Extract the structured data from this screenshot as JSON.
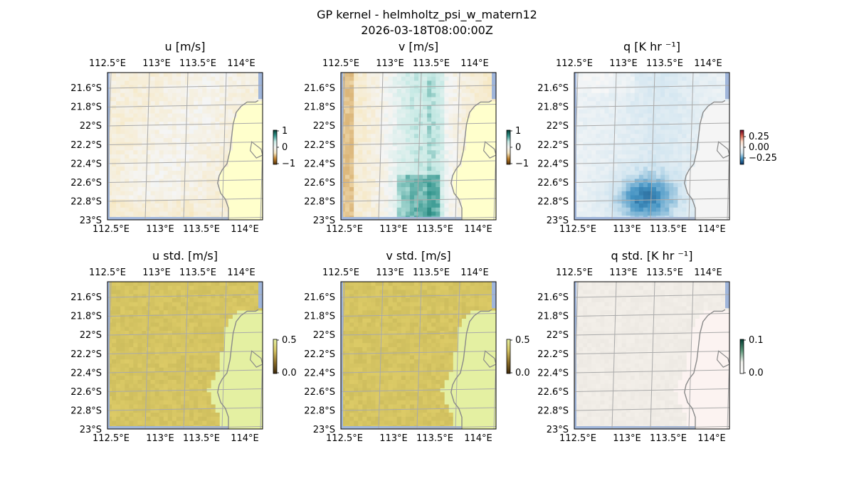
{
  "figure": {
    "title": "GP kernel - helmholtz_psi_w_matern12",
    "subtitle": "2026-03-18T08:00:00Z"
  },
  "colors": {
    "land": "#ffffcc",
    "ocean_edge": "#9fb5da",
    "coastline": "#8a8a8a",
    "grid": "#aaaaaa",
    "std_land": "#e4f0a2",
    "q_land": "#f5f5f5"
  },
  "chart_data": [
    {
      "type": "heatmap",
      "id": "u",
      "title": "u [m/s]",
      "x_ticks": [
        "112.5°E",
        "113°E",
        "113.5°E",
        "114°E"
      ],
      "y_ticks": [
        "21.6°S",
        "21.8°S",
        "22°S",
        "22.2°S",
        "22.4°S",
        "22.6°S",
        "22.8°S",
        "23°S"
      ],
      "lon_range": [
        112.4,
        114.2
      ],
      "lat_range": [
        -23.0,
        -21.48
      ],
      "colorbar": {
        "ticks": [
          "1",
          "0",
          "−1"
        ],
        "range": [
          -1,
          1
        ],
        "colormap": "BrBG-like diverging"
      },
      "field_summary": "mostly small positive values (pale yellow-tan) over ocean; land masked"
    },
    {
      "type": "heatmap",
      "id": "v",
      "title": "v [m/s]",
      "x_ticks": [
        "112.5°E",
        "113°E",
        "113.5°E",
        "114°E"
      ],
      "y_ticks": [
        "21.6°S",
        "21.8°S",
        "22°S",
        "22.2°S",
        "22.4°S",
        "22.6°S",
        "22.8°S",
        "23°S"
      ],
      "lon_range": [
        112.4,
        114.2
      ],
      "lat_range": [
        -23.0,
        -21.48
      ],
      "colorbar": {
        "ticks": [
          "1",
          "0",
          "−1"
        ],
        "range": [
          -1,
          1
        ],
        "colormap": "BrBG-like diverging"
      },
      "field_summary": "positive near western edge, negative (teal) in central band, strongest near south"
    },
    {
      "type": "heatmap",
      "id": "q",
      "title": "q [K hr ⁻¹]",
      "x_ticks": [
        "112.5°E",
        "113°E",
        "113.5°E",
        "114°E"
      ],
      "y_ticks": [
        "21.6°S",
        "21.8°S",
        "22°S",
        "22.2°S",
        "22.4°S",
        "22.6°S",
        "22.8°S",
        "23°S"
      ],
      "lon_range": [
        112.4,
        114.2
      ],
      "lat_range": [
        -23.0,
        -21.48
      ],
      "colorbar": {
        "ticks": [
          "0.25",
          "0.00",
          "−0.25"
        ],
        "range": [
          -0.35,
          0.35
        ],
        "colormap": "RdBu-like diverging"
      },
      "field_summary": "weakly negative (light blue) over most of the ocean, stronger negative in south-central region"
    },
    {
      "type": "heatmap",
      "id": "u_std",
      "title": "u std. [m/s]",
      "x_ticks": [
        "112.5°E",
        "113°E",
        "113.5°E",
        "114°E"
      ],
      "y_ticks": [
        "21.6°S",
        "21.8°S",
        "22°S",
        "22.2°S",
        "22.4°S",
        "22.6°S",
        "22.8°S",
        "23°S"
      ],
      "lon_range": [
        112.4,
        114.2
      ],
      "lat_range": [
        -23.0,
        -21.48
      ],
      "colorbar": {
        "ticks": [
          "0.5",
          "0.0"
        ],
        "range": [
          0,
          0.6
        ],
        "colormap": "sequential"
      },
      "field_summary": "near-uniform standard deviation over ocean cells"
    },
    {
      "type": "heatmap",
      "id": "v_std",
      "title": "v std. [m/s]",
      "x_ticks": [
        "112.5°E",
        "113°E",
        "113.5°E",
        "114°E"
      ],
      "y_ticks": [
        "21.6°S",
        "21.8°S",
        "22°S",
        "22.2°S",
        "22.4°S",
        "22.6°S",
        "22.8°S",
        "23°S"
      ],
      "lon_range": [
        112.4,
        114.2
      ],
      "lat_range": [
        -23.0,
        -21.48
      ],
      "colorbar": {
        "ticks": [
          "0.5",
          "0.0"
        ],
        "range": [
          0,
          0.6
        ],
        "colormap": "sequential"
      },
      "field_summary": "near-uniform standard deviation over ocean cells"
    },
    {
      "type": "heatmap",
      "id": "q_std",
      "title": "q std. [K hr ⁻¹]",
      "x_ticks": [
        "112.5°E",
        "113°E",
        "113.5°E",
        "114°E"
      ],
      "y_ticks": [
        "21.6°S",
        "21.8°S",
        "22°S",
        "22.2°S",
        "22.4°S",
        "22.6°S",
        "22.8°S",
        "23°S"
      ],
      "lon_range": [
        112.4,
        114.2
      ],
      "lat_range": [
        -23.0,
        -21.48
      ],
      "colorbar": {
        "ticks": [
          "0.1",
          "0.0"
        ],
        "range": [
          0,
          0.12
        ],
        "colormap": "sequential"
      },
      "field_summary": "very low standard deviation throughout"
    }
  ]
}
